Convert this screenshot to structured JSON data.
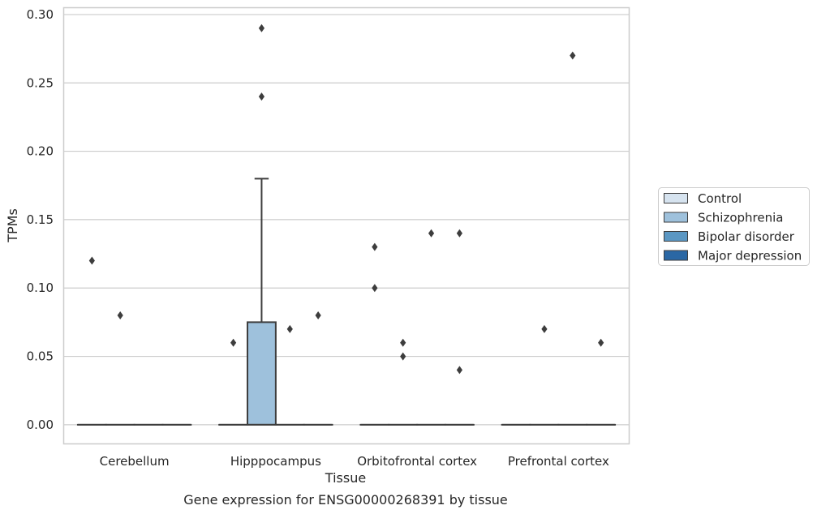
{
  "chart_data": {
    "type": "box",
    "title": "Gene expression for ENSG00000268391 by tissue",
    "xlabel": "Tissue",
    "ylabel": "TPMs",
    "ylim": [
      -0.014,
      0.305
    ],
    "y_ticks": [
      0.0,
      0.05,
      0.1,
      0.15,
      0.2,
      0.25,
      0.3
    ],
    "y_tick_labels": [
      "0.00",
      "0.05",
      "0.10",
      "0.15",
      "0.20",
      "0.25",
      "0.30"
    ],
    "grid": "horizontal",
    "legend_position": "right",
    "categories": [
      "Cerebellum",
      "Hipppocampus",
      "Orbitofrontal cortex",
      "Prefrontal cortex"
    ],
    "series": [
      {
        "name": "Control",
        "color": "#d6e3ef",
        "boxes": [
          {
            "q1": 0,
            "median": 0,
            "q3": 0,
            "whisker_low": 0,
            "whisker_high": 0,
            "outliers": [
              0.12
            ]
          },
          {
            "q1": 0,
            "median": 0,
            "q3": 0,
            "whisker_low": 0,
            "whisker_high": 0,
            "outliers": [
              0.06
            ]
          },
          {
            "q1": 0,
            "median": 0,
            "q3": 0,
            "whisker_low": 0,
            "whisker_high": 0,
            "outliers": [
              0.13,
              0.1
            ]
          },
          {
            "q1": 0,
            "median": 0,
            "q3": 0,
            "whisker_low": 0,
            "whisker_high": 0,
            "outliers": []
          }
        ]
      },
      {
        "name": "Schizophrenia",
        "color": "#9ec1dc",
        "boxes": [
          {
            "q1": 0,
            "median": 0,
            "q3": 0,
            "whisker_low": 0,
            "whisker_high": 0,
            "outliers": [
              0.08
            ]
          },
          {
            "q1": 0,
            "median": 0,
            "q3": 0.075,
            "whisker_low": 0,
            "whisker_high": 0.18,
            "outliers": [
              0.29,
              0.24
            ]
          },
          {
            "q1": 0,
            "median": 0,
            "q3": 0,
            "whisker_low": 0,
            "whisker_high": 0,
            "outliers": [
              0.06,
              0.05
            ]
          },
          {
            "q1": 0,
            "median": 0,
            "q3": 0,
            "whisker_low": 0,
            "whisker_high": 0,
            "outliers": [
              0.07
            ]
          }
        ]
      },
      {
        "name": "Bipolar disorder",
        "color": "#5b97c3",
        "boxes": [
          {
            "q1": 0,
            "median": 0,
            "q3": 0,
            "whisker_low": 0,
            "whisker_high": 0,
            "outliers": []
          },
          {
            "q1": 0,
            "median": 0,
            "q3": 0,
            "whisker_low": 0,
            "whisker_high": 0,
            "outliers": [
              0.07
            ]
          },
          {
            "q1": 0,
            "median": 0,
            "q3": 0,
            "whisker_low": 0,
            "whisker_high": 0,
            "outliers": [
              0.14
            ]
          },
          {
            "q1": 0,
            "median": 0,
            "q3": 0,
            "whisker_low": 0,
            "whisker_high": 0,
            "outliers": [
              0.27
            ]
          }
        ]
      },
      {
        "name": "Major depression",
        "color": "#2a67a4",
        "boxes": [
          {
            "q1": 0,
            "median": 0,
            "q3": 0,
            "whisker_low": 0,
            "whisker_high": 0,
            "outliers": []
          },
          {
            "q1": 0,
            "median": 0,
            "q3": 0,
            "whisker_low": 0,
            "whisker_high": 0,
            "outliers": [
              0.08
            ]
          },
          {
            "q1": 0,
            "median": 0,
            "q3": 0,
            "whisker_low": 0,
            "whisker_high": 0,
            "outliers": [
              0.14,
              0.04
            ]
          },
          {
            "q1": 0,
            "median": 0,
            "q3": 0,
            "whisker_low": 0,
            "whisker_high": 0,
            "outliers": [
              0.06
            ]
          }
        ]
      }
    ]
  }
}
